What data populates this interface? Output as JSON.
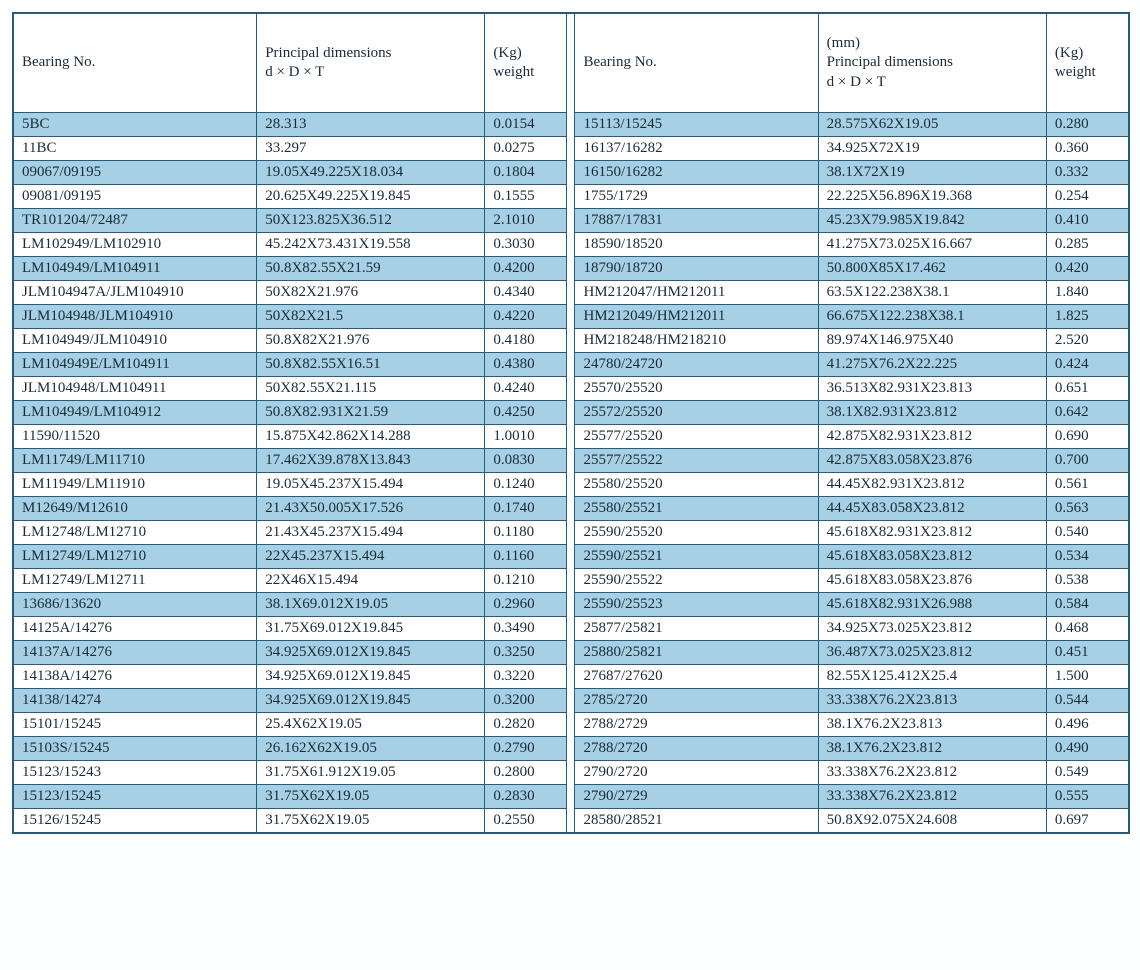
{
  "headers": {
    "left": {
      "bearing": "Bearing No.",
      "dim_line1": "Principal dimensions",
      "dim_line2": "d  ×  D  ×  T",
      "wt_line1": "(Kg)",
      "wt_line2": "weight"
    },
    "right": {
      "bearing": "Bearing No.",
      "dim_line0": "(mm)",
      "dim_line1": "Principal dimensions",
      "dim_line2": "d  ×  D  ×  T",
      "wt_line1": "(Kg)",
      "wt_line2": "weight"
    }
  },
  "rows": [
    {
      "l": [
        "5BC",
        "28.313",
        "0.0154"
      ],
      "r": [
        "15113/15245",
        "28.575X62X19.05",
        "0.280"
      ]
    },
    {
      "l": [
        "11BC",
        "33.297",
        "0.0275"
      ],
      "r": [
        "16137/16282",
        "34.925X72X19",
        "0.360"
      ]
    },
    {
      "l": [
        "09067/09195",
        "19.05X49.225X18.034",
        "0.1804"
      ],
      "r": [
        "16150/16282",
        "38.1X72X19",
        "0.332"
      ]
    },
    {
      "l": [
        "09081/09195",
        "20.625X49.225X19.845",
        "0.1555"
      ],
      "r": [
        "1755/1729",
        "22.225X56.896X19.368",
        "0.254"
      ]
    },
    {
      "l": [
        "TR101204/72487",
        "50X123.825X36.512",
        "2.1010"
      ],
      "r": [
        "17887/17831",
        "45.23X79.985X19.842",
        "0.410"
      ]
    },
    {
      "l": [
        "LM102949/LM102910",
        "45.242X73.431X19.558",
        "0.3030"
      ],
      "r": [
        "18590/18520",
        "41.275X73.025X16.667",
        "0.285"
      ]
    },
    {
      "l": [
        "LM104949/LM104911",
        "50.8X82.55X21.59",
        "0.4200"
      ],
      "r": [
        "18790/18720",
        "50.800X85X17.462",
        "0.420"
      ]
    },
    {
      "l": [
        "JLM104947A/JLM104910",
        "50X82X21.976",
        "0.4340"
      ],
      "r": [
        "HM212047/HM212011",
        "63.5X122.238X38.1",
        "1.840"
      ]
    },
    {
      "l": [
        "JLM104948/JLM104910",
        "50X82X21.5",
        "0.4220"
      ],
      "r": [
        "HM212049/HM212011",
        "66.675X122.238X38.1",
        "1.825"
      ]
    },
    {
      "l": [
        "LM104949/JLM104910",
        "50.8X82X21.976",
        "0.4180"
      ],
      "r": [
        "HM218248/HM218210",
        "89.974X146.975X40",
        "2.520"
      ]
    },
    {
      "l": [
        "LM104949E/LM104911",
        "50.8X82.55X16.51",
        "0.4380"
      ],
      "r": [
        "24780/24720",
        "41.275X76.2X22.225",
        "0.424"
      ]
    },
    {
      "l": [
        "JLM104948/LM104911",
        "50X82.55X21.115",
        "0.4240"
      ],
      "r": [
        "25570/25520",
        "36.513X82.931X23.813",
        "0.651"
      ]
    },
    {
      "l": [
        "LM104949/LM104912",
        "50.8X82.931X21.59",
        "0.4250"
      ],
      "r": [
        "25572/25520",
        "38.1X82.931X23.812",
        "0.642"
      ]
    },
    {
      "l": [
        "11590/11520",
        "15.875X42.862X14.288",
        "1.0010"
      ],
      "r": [
        "25577/25520",
        "42.875X82.931X23.812",
        "0.690"
      ]
    },
    {
      "l": [
        "LM11749/LM11710",
        "17.462X39.878X13.843",
        "0.0830"
      ],
      "r": [
        "25577/25522",
        "42.875X83.058X23.876",
        "0.700"
      ]
    },
    {
      "l": [
        "LM11949/LM11910",
        "19.05X45.237X15.494",
        "0.1240"
      ],
      "r": [
        "25580/25520",
        "44.45X82.931X23.812",
        "0.561"
      ]
    },
    {
      "l": [
        "M12649/M12610",
        "21.43X50.005X17.526",
        "0.1740"
      ],
      "r": [
        "25580/25521",
        "44.45X83.058X23.812",
        "0.563"
      ]
    },
    {
      "l": [
        "LM12748/LM12710",
        "21.43X45.237X15.494",
        "0.1180"
      ],
      "r": [
        "25590/25520",
        "45.618X82.931X23.812",
        "0.540"
      ]
    },
    {
      "l": [
        "LM12749/LM12710",
        "22X45.237X15.494",
        "0.1160"
      ],
      "r": [
        "25590/25521",
        "45.618X83.058X23.812",
        "0.534"
      ]
    },
    {
      "l": [
        "LM12749/LM12711",
        "22X46X15.494",
        "0.1210"
      ],
      "r": [
        "25590/25522",
        "45.618X83.058X23.876",
        "0.538"
      ]
    },
    {
      "l": [
        "13686/13620",
        "38.1X69.012X19.05",
        "0.2960"
      ],
      "r": [
        "25590/25523",
        "45.618X82.931X26.988",
        "0.584"
      ]
    },
    {
      "l": [
        "14125A/14276",
        "31.75X69.012X19.845",
        "0.3490"
      ],
      "r": [
        "25877/25821",
        "34.925X73.025X23.812",
        "0.468"
      ]
    },
    {
      "l": [
        "14137A/14276",
        "34.925X69.012X19.845",
        "0.3250"
      ],
      "r": [
        "25880/25821",
        "36.487X73.025X23.812",
        "0.451"
      ]
    },
    {
      "l": [
        "14138A/14276",
        "34.925X69.012X19.845",
        "0.3220"
      ],
      "r": [
        "27687/27620",
        "82.55X125.412X25.4",
        "1.500"
      ]
    },
    {
      "l": [
        "14138/14274",
        "34.925X69.012X19.845",
        "0.3200"
      ],
      "r": [
        "2785/2720",
        "33.338X76.2X23.813",
        "0.544"
      ]
    },
    {
      "l": [
        "15101/15245",
        "25.4X62X19.05",
        "0.2820"
      ],
      "r": [
        "2788/2729",
        "38.1X76.2X23.813",
        "0.496"
      ]
    },
    {
      "l": [
        "15103S/15245",
        "26.162X62X19.05",
        "0.2790"
      ],
      "r": [
        "2788/2720",
        "38.1X76.2X23.812",
        "0.490"
      ]
    },
    {
      "l": [
        "15123/15243",
        "31.75X61.912X19.05",
        "0.2800"
      ],
      "r": [
        "2790/2720",
        "33.338X76.2X23.812",
        "0.549"
      ]
    },
    {
      "l": [
        "15123/15245",
        "31.75X62X19.05",
        "0.2830"
      ],
      "r": [
        "2790/2729",
        "33.338X76.2X23.812",
        "0.555"
      ]
    },
    {
      "l": [
        "15126/15245",
        "31.75X62X19.05",
        "0.2550"
      ],
      "r": [
        "28580/28521",
        "50.8X92.075X24.608",
        "0.697"
      ]
    }
  ]
}
